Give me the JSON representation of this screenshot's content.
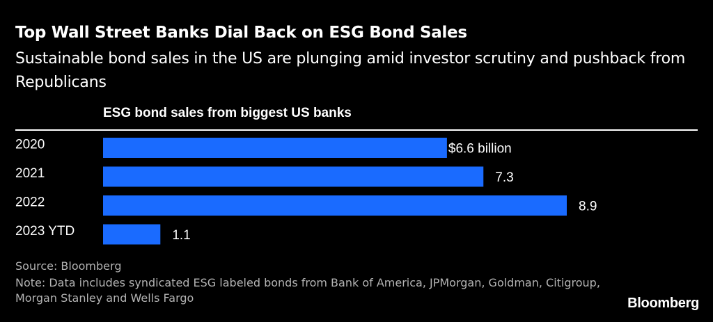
{
  "header": {
    "title": "Top Wall Street Banks Dial Back on ESG Bond Sales",
    "subtitle": "Sustainable bond sales in the US are plunging amid investor scrutiny and pushback from Republicans"
  },
  "chart_data": {
    "type": "bar",
    "orientation": "horizontal",
    "title": "ESG bond sales from biggest US banks",
    "categories": [
      "2020",
      "2021",
      "2022",
      "2023 YTD"
    ],
    "values": [
      6.6,
      7.3,
      8.9,
      1.1
    ],
    "value_labels": [
      "$6.6 billion",
      "7.3",
      "8.9",
      "1.1"
    ],
    "unit": "billion USD",
    "xlim": [
      0,
      8.9
    ],
    "bar_color": "#1a6bff",
    "grid": false
  },
  "footer": {
    "source": "Source: Bloomberg",
    "note": "Note: Data includes syndicated ESG labeled bonds from Bank of America, JPMorgan, Goldman, Citigroup, Morgan Stanley and Wells Fargo",
    "logo": "Bloomberg"
  },
  "colors": {
    "background": "#000000",
    "text": "#ffffff",
    "muted_text": "#b3b3b3",
    "bar": "#1a6bff"
  }
}
